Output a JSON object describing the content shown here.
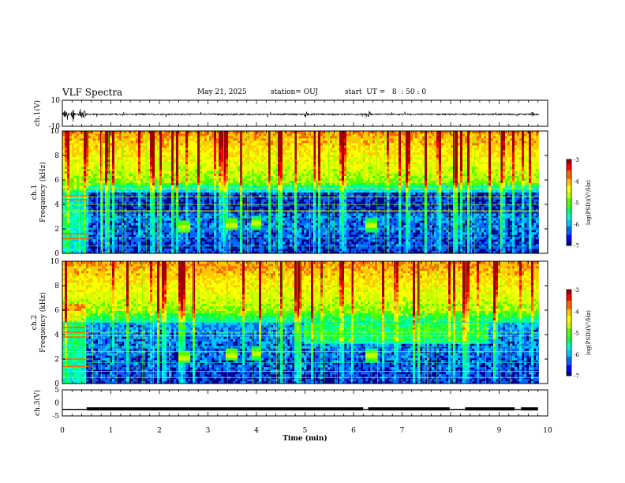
{
  "header": {
    "title": "VLF Spectra",
    "date": "May 21, 2025",
    "station": "station= OUJ",
    "start": "start  UT =   8  : 50 : 0"
  },
  "colors": {
    "colormap": [
      "#00007a",
      "#0000ff",
      "#0064ff",
      "#00c8ff",
      "#00ffc8",
      "#00ff64",
      "#50ff00",
      "#c8ff00",
      "#ffff00",
      "#ffc800",
      "#ff6400",
      "#ff0000",
      "#a00000"
    ]
  },
  "chart_data": [
    {
      "type": "line",
      "panel": "ch1-waveform",
      "ylabel": "ch.1(V)",
      "ylim": [
        -10,
        10
      ],
      "ytick_labels": [
        "10",
        "-10"
      ],
      "xlim": [
        0,
        10
      ],
      "baseline": -0.8,
      "noise_amplitude": 1.2,
      "bursts": [
        {
          "t": 0.05,
          "amp": 4
        },
        {
          "t": 0.1,
          "amp": 5
        },
        {
          "t": 0.22,
          "amp": 6
        },
        {
          "t": 0.38,
          "amp": 5
        },
        {
          "t": 0.45,
          "amp": 4
        },
        {
          "t": 5.02,
          "amp": 3
        },
        {
          "t": 6.32,
          "amp": 3
        },
        {
          "t": 9.7,
          "amp": 2
        }
      ]
    },
    {
      "type": "heatmap",
      "panel": "ch1-spectrogram",
      "ylabel_top": "ch.1",
      "ylabel": "Frequency (kHz)",
      "xlim": [
        0,
        10
      ],
      "ylim": [
        0,
        10
      ],
      "ytick_labels": [
        "0",
        "2",
        "4",
        "6",
        "8",
        "10"
      ],
      "colorbar": {
        "label": "log(PSD)(V²/Hz)",
        "range": [
          -7,
          -3
        ],
        "tick_labels": [
          "-3",
          "-4",
          "-5",
          "-6",
          "-7"
        ]
      },
      "quiet_band_khz": [
        3.2,
        5.6
      ],
      "tone_lines_khz": [
        0.6,
        1.3,
        2.0,
        2.9,
        3.4,
        3.5,
        4.0,
        4.6,
        5.3
      ],
      "strong_lines_t0_0p5_khz": [
        1.2,
        1.6,
        4.4,
        4.7
      ],
      "bursts": [
        {
          "t": 2.5,
          "f": 2.2
        },
        {
          "t": 3.5,
          "f": 2.4
        },
        {
          "t": 4.0,
          "f": 2.5
        },
        {
          "t": 6.35,
          "f": 2.3
        }
      ]
    },
    {
      "type": "heatmap",
      "panel": "ch2-spectrogram",
      "ylabel_top": "ch.2",
      "ylabel": "Frequency (kHz)",
      "xlim": [
        0,
        10
      ],
      "ylim": [
        0,
        10
      ],
      "ytick_labels": [
        "0",
        "2",
        "4",
        "6",
        "8",
        "10"
      ],
      "colorbar": {
        "label": "log(PSD)(V²/Hz)",
        "range": [
          -7,
          -3
        ],
        "tick_labels": [
          "-3",
          "-4",
          "-5",
          "-6",
          "-7"
        ]
      },
      "band_khz_t0_5": [
        5.4,
        6.3
      ],
      "band_khz_t5_8p8": [
        3.3,
        6.6
      ],
      "lower_edge_line_khz": 3.4,
      "tone_lines_khz": [
        0.5,
        1.0,
        1.7,
        2.6,
        3.0,
        3.9,
        4.2,
        5.0
      ],
      "strong_lines_t0_0p5_khz": [
        1.4,
        2.0,
        3.8,
        4.2,
        4.6
      ],
      "bursts": [
        {
          "t": 2.5,
          "f": 2.2
        },
        {
          "t": 3.5,
          "f": 2.4
        },
        {
          "t": 4.0,
          "f": 2.5
        },
        {
          "t": 6.35,
          "f": 2.3
        }
      ]
    },
    {
      "type": "line",
      "panel": "ch3-signal",
      "ylabel": "ch.3(V)",
      "ylim": [
        -5,
        5
      ],
      "ytick_labels": [
        "5",
        "0",
        "-5"
      ],
      "xlim": [
        0,
        10
      ],
      "xlabel": "Time (min)",
      "xtick_labels": [
        "0",
        "1",
        "2",
        "3",
        "4",
        "5",
        "6",
        "7",
        "8",
        "9",
        "10"
      ],
      "base_level": -2.5,
      "high_level": -2.0,
      "segments": [
        [
          0.0,
          0.5,
          -2.5
        ],
        [
          0.5,
          9.8,
          -2.0
        ]
      ],
      "gaps_min": [
        6.2,
        6.3,
        7.98,
        8.3,
        9.32,
        9.45
      ]
    }
  ]
}
